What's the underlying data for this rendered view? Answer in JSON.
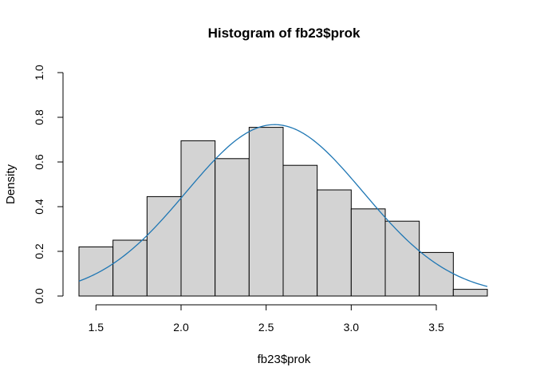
{
  "chart_data": {
    "type": "bar",
    "title": "Histogram of fb23$prok",
    "xlabel": "fb23$prok",
    "ylabel": "Density",
    "bin_edges": [
      1.4,
      1.6,
      1.8,
      2.0,
      2.2,
      2.4,
      2.6,
      2.8,
      3.0,
      3.2,
      3.4,
      3.6,
      3.8
    ],
    "values": [
      0.22,
      0.25,
      0.445,
      0.695,
      0.615,
      0.755,
      0.585,
      0.475,
      0.39,
      0.335,
      0.195,
      0.03
    ],
    "xlim": [
      1.4,
      3.8
    ],
    "ylim": [
      0,
      1.0
    ],
    "x_ticks": [
      "1.5",
      "2.0",
      "2.5",
      "3.0",
      "3.5"
    ],
    "y_ticks": [
      "0.0",
      "0.2",
      "0.4",
      "0.6",
      "0.8",
      "1.0"
    ],
    "bar_color": "#d3d3d3",
    "bar_border": "#000000",
    "curve": {
      "type": "normal_density",
      "mean": 2.55,
      "sd": 0.52,
      "color": "#1f77b4"
    },
    "grid": false,
    "legend": "none"
  }
}
